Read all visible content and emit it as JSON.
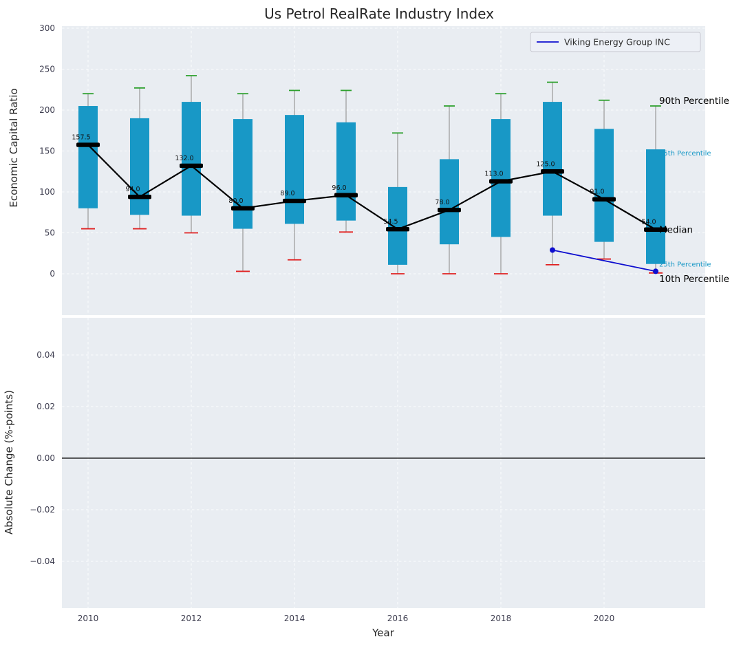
{
  "title": "Us Petrol RealRate Industry Index",
  "legend": {
    "label": "Viking Energy Group INC"
  },
  "colors": {
    "box": "#1898c6",
    "p90_cap": "#2ca02c",
    "p10_cap": "#e02020",
    "median": "#000000",
    "overlay": "#0e0ecf",
    "plot_bg": "#e9edf2",
    "grid": "#ffffff",
    "whisker": "#999999"
  },
  "chart_data": {
    "type": "boxplot",
    "title": "Us Petrol RealRate Industry Index",
    "xlabel": "Year",
    "x": [
      2010,
      2011,
      2012,
      2013,
      2014,
      2015,
      2016,
      2017,
      2018,
      2019,
      2020,
      2021
    ],
    "xticks": [
      2010,
      2012,
      2014,
      2016,
      2018,
      2020
    ],
    "series": {
      "p90": [
        220,
        227,
        242,
        220,
        224,
        224,
        172,
        205,
        220,
        234,
        212,
        205
      ],
      "p75": [
        205,
        190,
        210,
        189,
        194,
        185,
        106,
        140,
        189,
        210,
        177,
        152
      ],
      "median": [
        157.5,
        94,
        132,
        80,
        89,
        96,
        54.5,
        78,
        113,
        125,
        91,
        54
      ],
      "p25": [
        80,
        72,
        71,
        55,
        61,
        65,
        11,
        36,
        45,
        71,
        39,
        12
      ],
      "p10": [
        55,
        55,
        50,
        3,
        17,
        51,
        0,
        0,
        0,
        11,
        18,
        1
      ]
    },
    "median_labels": [
      "157.5",
      "94.0",
      "132.0",
      "80.0",
      "89.0",
      "96.0",
      "54.5",
      "78.0",
      "113.0",
      "125.0",
      "91.0",
      "54.0"
    ],
    "overlay_line": {
      "name": "Viking Energy Group INC",
      "x": [
        2019,
        2021
      ],
      "y": [
        29,
        3
      ]
    },
    "top_axis": {
      "ylabel": "Economic Capital Ratio",
      "yticks": [
        0,
        50,
        100,
        150,
        200,
        250,
        300
      ],
      "ylim": [
        -50,
        302
      ]
    },
    "bottom_axis": {
      "ylabel": "Absolute Change (%-points)",
      "ytick_labels": [
        "0.04",
        "0.02",
        "0.00",
        "−0.02",
        "−0.04"
      ],
      "ytick_values": [
        0.04,
        0.02,
        0,
        -0.02,
        -0.04
      ],
      "ylim": [
        -0.058,
        0.0545
      ],
      "zero_line": 0
    },
    "annotations": [
      {
        "text": "90th Percentile",
        "color": "#000000",
        "size": 13.5,
        "value": 205,
        "dy": -3
      },
      {
        "text": "75th Percentile",
        "color": "#1898c6",
        "size": 10,
        "value": 152,
        "dy": 9
      },
      {
        "text": "Median",
        "color": "#000000",
        "size": 13.5,
        "value": 54,
        "dy": 5
      },
      {
        "text": "25th Percentile",
        "color": "#1898c6",
        "size": 10,
        "value": 12,
        "dy": 4
      },
      {
        "text": "10th Percentile",
        "color": "#000000",
        "size": 13.5,
        "value": 1,
        "dy": 13
      }
    ]
  }
}
